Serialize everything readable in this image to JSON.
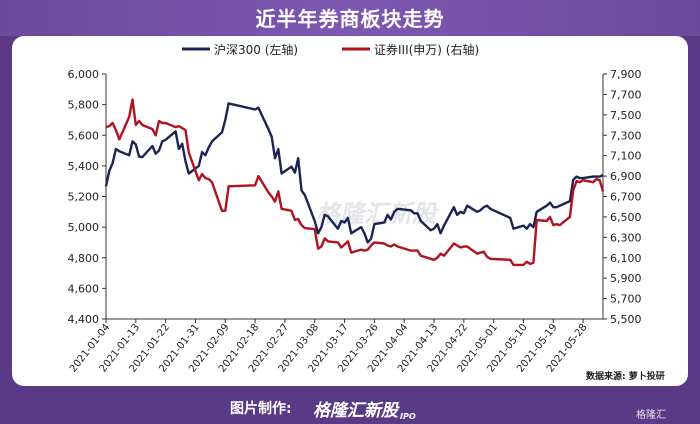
{
  "header": {
    "title": "近半年券商板块走势"
  },
  "footer": {
    "credit_label": "图片制作:",
    "brand": "格隆汇新股",
    "brand_suffix": "IPO",
    "corner_logo": "格隆汇",
    "source": "数据来源: 萝卜投研"
  },
  "watermark": "格隆汇新股",
  "colors": {
    "hs300": "#1c2452",
    "sec": "#b01220",
    "background": "#5a3a86"
  },
  "chart_data": {
    "type": "line",
    "title": "近半年券商板块走势",
    "xlabel": "",
    "ylabel": "",
    "y_left": {
      "range": [
        4400,
        6000
      ],
      "ticks": [
        "4,400",
        "4,600",
        "4,800",
        "5,000",
        "5,200",
        "5,400",
        "5,600",
        "5,800",
        "6,000"
      ]
    },
    "y_right": {
      "range": [
        5500,
        7900
      ],
      "ticks": [
        "5,500",
        "5,700",
        "5,900",
        "6,100",
        "6,300",
        "6,500",
        "6,700",
        "6,900",
        "7,100",
        "7,300",
        "7,500",
        "7,700",
        "7,900"
      ]
    },
    "x_ticks": [
      "2021-01-04",
      "2021-01-13",
      "2021-01-22",
      "2021-01-31",
      "2021-02-09",
      "2021-02-18",
      "2021-02-27",
      "2021-03-08",
      "2021-03-17",
      "2021-03-26",
      "2021-04-04",
      "2021-04-13",
      "2021-04-22",
      "2021-05-01",
      "2021-05-10",
      "2021-05-19",
      "2021-05-28"
    ],
    "x_range": [
      "2021-01-04",
      "2021-06-03"
    ],
    "legend_position": "top",
    "series": [
      {
        "name": "沪深300 (左轴)",
        "axis": "left",
        "points": [
          [
            "2021-01-04",
            5267
          ],
          [
            "2021-01-05",
            5368
          ],
          [
            "2021-01-06",
            5418
          ],
          [
            "2021-01-07",
            5510
          ],
          [
            "2021-01-08",
            5495
          ],
          [
            "2021-01-11",
            5470
          ],
          [
            "2021-01-12",
            5560
          ],
          [
            "2021-01-13",
            5540
          ],
          [
            "2021-01-14",
            5460
          ],
          [
            "2021-01-15",
            5458
          ],
          [
            "2021-01-18",
            5530
          ],
          [
            "2021-01-19",
            5480
          ],
          [
            "2021-01-20",
            5500
          ],
          [
            "2021-01-21",
            5560
          ],
          [
            "2021-01-22",
            5570
          ],
          [
            "2021-01-25",
            5625
          ],
          [
            "2021-01-26",
            5510
          ],
          [
            "2021-01-27",
            5545
          ],
          [
            "2021-01-28",
            5430
          ],
          [
            "2021-01-29",
            5350
          ],
          [
            "2021-02-01",
            5400
          ],
          [
            "2021-02-02",
            5490
          ],
          [
            "2021-02-03",
            5470
          ],
          [
            "2021-02-04",
            5520
          ],
          [
            "2021-02-05",
            5560
          ],
          [
            "2021-02-08",
            5620
          ],
          [
            "2021-02-09",
            5700
          ],
          [
            "2021-02-10",
            5808
          ],
          [
            "2021-02-18",
            5768
          ],
          [
            "2021-02-19",
            5780
          ],
          [
            "2021-02-22",
            5640
          ],
          [
            "2021-02-23",
            5590
          ],
          [
            "2021-02-24",
            5450
          ],
          [
            "2021-02-25",
            5510
          ],
          [
            "2021-02-26",
            5350
          ],
          [
            "2021-03-01",
            5395
          ],
          [
            "2021-03-02",
            5356
          ],
          [
            "2021-03-03",
            5450
          ],
          [
            "2021-03-04",
            5240
          ],
          [
            "2021-03-05",
            5210
          ],
          [
            "2021-03-08",
            5040
          ],
          [
            "2021-03-09",
            4960
          ],
          [
            "2021-03-10",
            5000
          ],
          [
            "2021-03-11",
            5080
          ],
          [
            "2021-03-12",
            5070
          ],
          [
            "2021-03-15",
            4990
          ],
          [
            "2021-03-16",
            5040
          ],
          [
            "2021-03-17",
            5030
          ],
          [
            "2021-03-18",
            5060
          ],
          [
            "2021-03-19",
            4960
          ],
          [
            "2021-03-22",
            5000
          ],
          [
            "2021-03-23",
            4960
          ],
          [
            "2021-03-24",
            4900
          ],
          [
            "2021-03-25",
            4925
          ],
          [
            "2021-03-26",
            5020
          ],
          [
            "2021-03-29",
            5030
          ],
          [
            "2021-03-30",
            5080
          ],
          [
            "2021-03-31",
            5050
          ],
          [
            "2021-04-01",
            5100
          ],
          [
            "2021-04-02",
            5120
          ],
          [
            "2021-04-06",
            5110
          ],
          [
            "2021-04-07",
            5090
          ],
          [
            "2021-04-08",
            5090
          ],
          [
            "2021-04-09",
            5040
          ],
          [
            "2021-04-12",
            4980
          ],
          [
            "2021-04-13",
            4990
          ],
          [
            "2021-04-14",
            5020
          ],
          [
            "2021-04-15",
            4960
          ],
          [
            "2021-04-16",
            5010
          ],
          [
            "2021-04-19",
            5130
          ],
          [
            "2021-04-20",
            5080
          ],
          [
            "2021-04-21",
            5100
          ],
          [
            "2021-04-22",
            5090
          ],
          [
            "2021-04-23",
            5140
          ],
          [
            "2021-04-26",
            5100
          ],
          [
            "2021-04-27",
            5110
          ],
          [
            "2021-04-28",
            5130
          ],
          [
            "2021-04-29",
            5140
          ],
          [
            "2021-04-30",
            5120
          ],
          [
            "2021-05-06",
            5060
          ],
          [
            "2021-05-07",
            4990
          ],
          [
            "2021-05-10",
            5010
          ],
          [
            "2021-05-11",
            4990
          ],
          [
            "2021-05-12",
            5020
          ],
          [
            "2021-05-13",
            5000
          ],
          [
            "2021-05-14",
            5100
          ],
          [
            "2021-05-17",
            5140
          ],
          [
            "2021-05-18",
            5160
          ],
          [
            "2021-05-19",
            5130
          ],
          [
            "2021-05-20",
            5130
          ],
          [
            "2021-05-21",
            5140
          ],
          [
            "2021-05-24",
            5170
          ],
          [
            "2021-05-25",
            5310
          ],
          [
            "2021-05-26",
            5330
          ],
          [
            "2021-05-27",
            5320
          ],
          [
            "2021-05-28",
            5320
          ],
          [
            "2021-05-31",
            5330
          ],
          [
            "2021-06-01",
            5330
          ],
          [
            "2021-06-02",
            5330
          ],
          [
            "2021-06-03",
            5340
          ]
        ]
      },
      {
        "name": "证券III(申万) (右轴)",
        "axis": "right",
        "points": [
          [
            "2021-01-04",
            7380
          ],
          [
            "2021-01-05",
            7390
          ],
          [
            "2021-01-06",
            7420
          ],
          [
            "2021-01-07",
            7350
          ],
          [
            "2021-01-08",
            7260
          ],
          [
            "2021-01-11",
            7480
          ],
          [
            "2021-01-12",
            7650
          ],
          [
            "2021-01-13",
            7400
          ],
          [
            "2021-01-14",
            7440
          ],
          [
            "2021-01-15",
            7400
          ],
          [
            "2021-01-18",
            7360
          ],
          [
            "2021-01-19",
            7300
          ],
          [
            "2021-01-20",
            7440
          ],
          [
            "2021-01-21",
            7420
          ],
          [
            "2021-01-22",
            7420
          ],
          [
            "2021-01-25",
            7380
          ],
          [
            "2021-01-26",
            7390
          ],
          [
            "2021-01-27",
            7370
          ],
          [
            "2021-01-28",
            7350
          ],
          [
            "2021-01-29",
            7130
          ],
          [
            "2021-02-01",
            6860
          ],
          [
            "2021-02-02",
            6920
          ],
          [
            "2021-02-03",
            6880
          ],
          [
            "2021-02-04",
            6870
          ],
          [
            "2021-02-05",
            6840
          ],
          [
            "2021-02-08",
            6560
          ],
          [
            "2021-02-09",
            6560
          ],
          [
            "2021-02-10",
            6800
          ],
          [
            "2021-02-18",
            6810
          ],
          [
            "2021-02-19",
            6900
          ],
          [
            "2021-02-22",
            6740
          ],
          [
            "2021-02-23",
            6700
          ],
          [
            "2021-02-24",
            6650
          ],
          [
            "2021-02-25",
            6750
          ],
          [
            "2021-02-26",
            6580
          ],
          [
            "2021-03-01",
            6560
          ],
          [
            "2021-03-02",
            6470
          ],
          [
            "2021-03-03",
            6480
          ],
          [
            "2021-03-04",
            6420
          ],
          [
            "2021-03-05",
            6390
          ],
          [
            "2021-03-08",
            6380
          ],
          [
            "2021-03-09",
            6190
          ],
          [
            "2021-03-10",
            6210
          ],
          [
            "2021-03-11",
            6290
          ],
          [
            "2021-03-12",
            6260
          ],
          [
            "2021-03-15",
            6250
          ],
          [
            "2021-03-16",
            6200
          ],
          [
            "2021-03-17",
            6230
          ],
          [
            "2021-03-18",
            6260
          ],
          [
            "2021-03-19",
            6150
          ],
          [
            "2021-03-22",
            6180
          ],
          [
            "2021-03-23",
            6170
          ],
          [
            "2021-03-24",
            6180
          ],
          [
            "2021-03-25",
            6220
          ],
          [
            "2021-03-26",
            6250
          ],
          [
            "2021-03-29",
            6240
          ],
          [
            "2021-03-30",
            6220
          ],
          [
            "2021-03-31",
            6210
          ],
          [
            "2021-04-01",
            6230
          ],
          [
            "2021-04-02",
            6210
          ],
          [
            "2021-04-06",
            6170
          ],
          [
            "2021-04-07",
            6170
          ],
          [
            "2021-04-08",
            6170
          ],
          [
            "2021-04-09",
            6120
          ],
          [
            "2021-04-12",
            6090
          ],
          [
            "2021-04-13",
            6080
          ],
          [
            "2021-04-14",
            6100
          ],
          [
            "2021-04-15",
            6140
          ],
          [
            "2021-04-16",
            6120
          ],
          [
            "2021-04-19",
            6240
          ],
          [
            "2021-04-20",
            6220
          ],
          [
            "2021-04-21",
            6200
          ],
          [
            "2021-04-22",
            6210
          ],
          [
            "2021-04-23",
            6210
          ],
          [
            "2021-04-26",
            6140
          ],
          [
            "2021-04-27",
            6150
          ],
          [
            "2021-04-28",
            6160
          ],
          [
            "2021-04-29",
            6110
          ],
          [
            "2021-04-30",
            6090
          ],
          [
            "2021-05-06",
            6080
          ],
          [
            "2021-05-07",
            6030
          ],
          [
            "2021-05-10",
            6030
          ],
          [
            "2021-05-11",
            6060
          ],
          [
            "2021-05-12",
            6040
          ],
          [
            "2021-05-13",
            6050
          ],
          [
            "2021-05-14",
            6470
          ],
          [
            "2021-05-17",
            6460
          ],
          [
            "2021-05-18",
            6500
          ],
          [
            "2021-05-19",
            6420
          ],
          [
            "2021-05-20",
            6430
          ],
          [
            "2021-05-21",
            6420
          ],
          [
            "2021-05-24",
            6500
          ],
          [
            "2021-05-25",
            6760
          ],
          [
            "2021-05-26",
            6850
          ],
          [
            "2021-05-27",
            6840
          ],
          [
            "2021-05-28",
            6860
          ],
          [
            "2021-05-31",
            6840
          ],
          [
            "2021-06-01",
            6870
          ],
          [
            "2021-06-02",
            6860
          ],
          [
            "2021-06-03",
            6750
          ]
        ]
      }
    ]
  }
}
